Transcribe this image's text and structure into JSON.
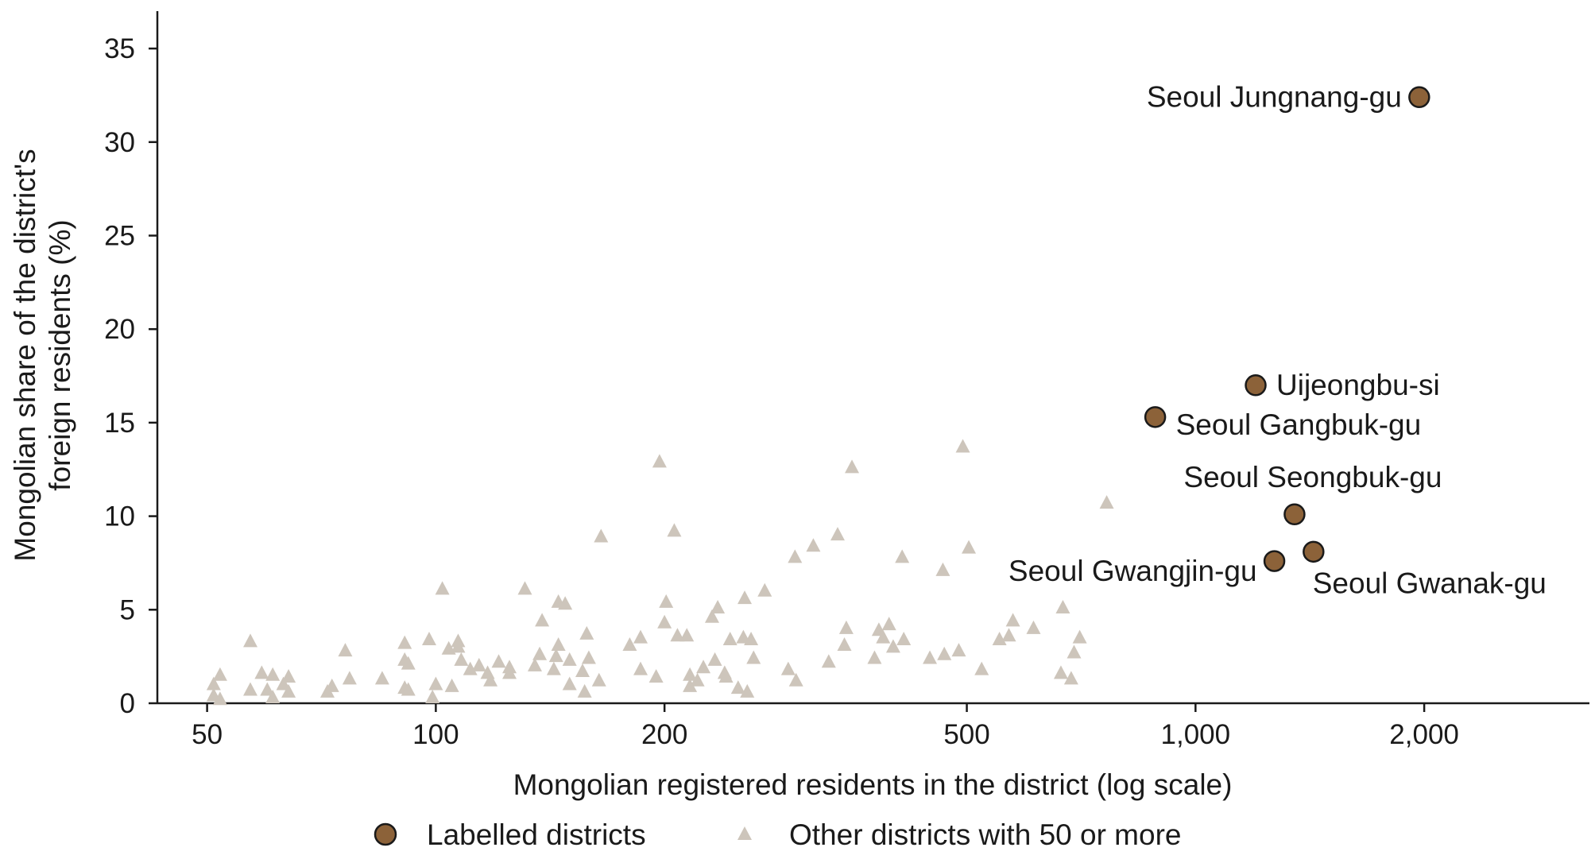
{
  "chart_data": {
    "type": "scatter",
    "title": "",
    "xlabel": "Mongolian registered residents in the district (log scale)",
    "ylabel_line1": "Mongolian share of the district's",
    "ylabel_line2": "foreign residents (%)",
    "x_scale": "log",
    "xlim": [
      43,
      3300
    ],
    "ylim": [
      0,
      37
    ],
    "x_ticks": [
      50,
      100,
      200,
      500,
      1000,
      2000
    ],
    "x_tick_labels": [
      "50",
      "100",
      "200",
      "500",
      "1,000",
      "2,000"
    ],
    "y_ticks": [
      0,
      5,
      10,
      15,
      20,
      25,
      30,
      35
    ],
    "y_tick_labels": [
      "0",
      "5",
      "10",
      "15",
      "20",
      "25",
      "30",
      "35"
    ],
    "grid": false,
    "legend_placement": "bottom-center",
    "colors": {
      "labelled": "#8c6239",
      "labelled_edge": "#1a1a1a",
      "other": "#cdc5bb",
      "axis": "#1a1a1a"
    },
    "series": [
      {
        "name": "Labelled districts",
        "marker": "circle",
        "points": [
          {
            "x": 1970,
            "y": 32.4,
            "label": "Seoul Jungnang-gu"
          },
          {
            "x": 1200,
            "y": 17.0,
            "label": "Uijeongbu-si"
          },
          {
            "x": 885,
            "y": 15.3,
            "label": "Seoul Gangbuk-gu"
          },
          {
            "x": 1350,
            "y": 10.1,
            "label": "Seoul Seongbuk-gu"
          },
          {
            "x": 1270,
            "y": 7.6,
            "label": "Seoul Gwangjin-gu"
          },
          {
            "x": 1430,
            "y": 8.1,
            "label": "Seoul Gwanak-gu"
          }
        ]
      },
      {
        "name": "Other districts with 50 or more",
        "marker": "triangle",
        "points": [
          {
            "x": 51,
            "y": 1.0
          },
          {
            "x": 51,
            "y": 0.4
          },
          {
            "x": 52,
            "y": 1.5
          },
          {
            "x": 52,
            "y": 0.2
          },
          {
            "x": 57,
            "y": 3.3
          },
          {
            "x": 57,
            "y": 0.7
          },
          {
            "x": 59,
            "y": 1.6
          },
          {
            "x": 60,
            "y": 0.7
          },
          {
            "x": 61,
            "y": 1.5
          },
          {
            "x": 61,
            "y": 0.3
          },
          {
            "x": 63,
            "y": 1.0
          },
          {
            "x": 64,
            "y": 1.4
          },
          {
            "x": 64,
            "y": 0.6
          },
          {
            "x": 72,
            "y": 0.6
          },
          {
            "x": 73,
            "y": 0.9
          },
          {
            "x": 76,
            "y": 2.8
          },
          {
            "x": 77,
            "y": 1.3
          },
          {
            "x": 85,
            "y": 1.3
          },
          {
            "x": 91,
            "y": 3.2
          },
          {
            "x": 91,
            "y": 2.3
          },
          {
            "x": 91,
            "y": 0.8
          },
          {
            "x": 92,
            "y": 2.1
          },
          {
            "x": 92,
            "y": 0.7
          },
          {
            "x": 98,
            "y": 3.4
          },
          {
            "x": 99,
            "y": 0.3
          },
          {
            "x": 100,
            "y": 1.0
          },
          {
            "x": 102,
            "y": 6.1
          },
          {
            "x": 104,
            "y": 2.9
          },
          {
            "x": 105,
            "y": 0.9
          },
          {
            "x": 107,
            "y": 3.3
          },
          {
            "x": 107,
            "y": 3.0
          },
          {
            "x": 108,
            "y": 2.3
          },
          {
            "x": 111,
            "y": 1.8
          },
          {
            "x": 114,
            "y": 2.0
          },
          {
            "x": 117,
            "y": 1.6
          },
          {
            "x": 118,
            "y": 1.2
          },
          {
            "x": 121,
            "y": 2.2
          },
          {
            "x": 125,
            "y": 1.9
          },
          {
            "x": 125,
            "y": 1.6
          },
          {
            "x": 131,
            "y": 6.1
          },
          {
            "x": 135,
            "y": 2.0
          },
          {
            "x": 137,
            "y": 2.6
          },
          {
            "x": 138,
            "y": 4.4
          },
          {
            "x": 143,
            "y": 1.8
          },
          {
            "x": 144,
            "y": 2.5
          },
          {
            "x": 145,
            "y": 3.1
          },
          {
            "x": 145,
            "y": 5.4
          },
          {
            "x": 148,
            "y": 5.3
          },
          {
            "x": 150,
            "y": 1.0
          },
          {
            "x": 150,
            "y": 2.3
          },
          {
            "x": 156,
            "y": 1.7
          },
          {
            "x": 157,
            "y": 0.6
          },
          {
            "x": 158,
            "y": 3.7
          },
          {
            "x": 159,
            "y": 2.4
          },
          {
            "x": 164,
            "y": 1.2
          },
          {
            "x": 165,
            "y": 8.9
          },
          {
            "x": 180,
            "y": 3.1
          },
          {
            "x": 186,
            "y": 3.5
          },
          {
            "x": 186,
            "y": 1.8
          },
          {
            "x": 195,
            "y": 1.4
          },
          {
            "x": 197,
            "y": 12.9
          },
          {
            "x": 200,
            "y": 4.3
          },
          {
            "x": 201,
            "y": 5.4
          },
          {
            "x": 206,
            "y": 9.2
          },
          {
            "x": 208,
            "y": 3.6
          },
          {
            "x": 214,
            "y": 3.6
          },
          {
            "x": 216,
            "y": 1.5
          },
          {
            "x": 216,
            "y": 0.9
          },
          {
            "x": 221,
            "y": 1.2
          },
          {
            "x": 225,
            "y": 1.9
          },
          {
            "x": 231,
            "y": 4.6
          },
          {
            "x": 233,
            "y": 2.3
          },
          {
            "x": 235,
            "y": 5.1
          },
          {
            "x": 240,
            "y": 1.6
          },
          {
            "x": 241,
            "y": 1.4
          },
          {
            "x": 244,
            "y": 3.4
          },
          {
            "x": 250,
            "y": 0.8
          },
          {
            "x": 254,
            "y": 3.5
          },
          {
            "x": 255,
            "y": 5.6
          },
          {
            "x": 257,
            "y": 0.6
          },
          {
            "x": 260,
            "y": 3.4
          },
          {
            "x": 262,
            "y": 2.4
          },
          {
            "x": 271,
            "y": 6.0
          },
          {
            "x": 291,
            "y": 1.8
          },
          {
            "x": 297,
            "y": 7.8
          },
          {
            "x": 298,
            "y": 1.2
          },
          {
            "x": 314,
            "y": 8.4
          },
          {
            "x": 329,
            "y": 2.2
          },
          {
            "x": 338,
            "y": 9.0
          },
          {
            "x": 345,
            "y": 3.1
          },
          {
            "x": 347,
            "y": 4.0
          },
          {
            "x": 353,
            "y": 12.6
          },
          {
            "x": 378,
            "y": 2.4
          },
          {
            "x": 383,
            "y": 3.9
          },
          {
            "x": 388,
            "y": 3.5
          },
          {
            "x": 395,
            "y": 4.2
          },
          {
            "x": 400,
            "y": 3.0
          },
          {
            "x": 411,
            "y": 7.8
          },
          {
            "x": 413,
            "y": 3.4
          },
          {
            "x": 447,
            "y": 2.4
          },
          {
            "x": 465,
            "y": 7.1
          },
          {
            "x": 467,
            "y": 2.6
          },
          {
            "x": 488,
            "y": 2.8
          },
          {
            "x": 494,
            "y": 13.7
          },
          {
            "x": 503,
            "y": 8.3
          },
          {
            "x": 523,
            "y": 1.8
          },
          {
            "x": 552,
            "y": 3.4
          },
          {
            "x": 568,
            "y": 3.6
          },
          {
            "x": 575,
            "y": 4.4
          },
          {
            "x": 612,
            "y": 4.0
          },
          {
            "x": 665,
            "y": 1.6
          },
          {
            "x": 669,
            "y": 5.1
          },
          {
            "x": 686,
            "y": 1.3
          },
          {
            "x": 692,
            "y": 2.7
          },
          {
            "x": 704,
            "y": 3.5
          },
          {
            "x": 764,
            "y": 10.7
          }
        ]
      }
    ]
  }
}
